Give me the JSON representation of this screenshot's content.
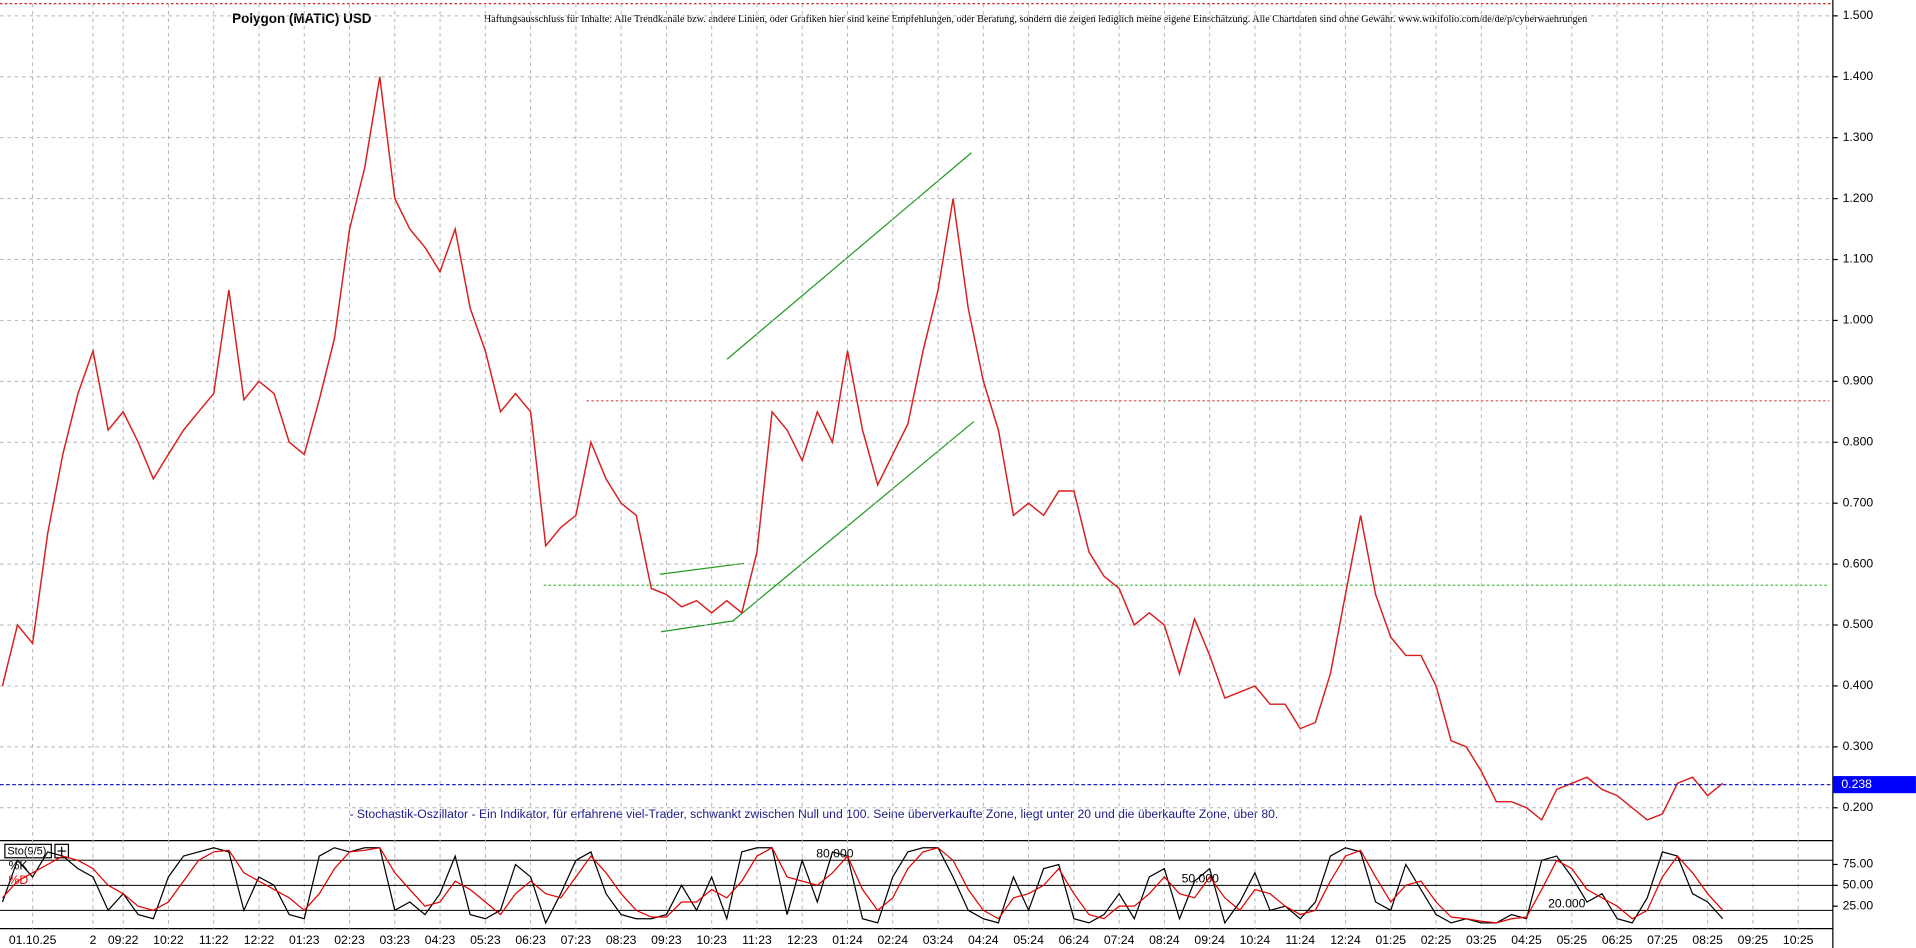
{
  "chart_data": [
    {
      "type": "line",
      "title": "Polygon (MATIC) USD",
      "subtitle": "Haftungsausschluss für Inhalte: Alle Trendkanäle bzw. andere Linien, oder Grafiken hier sind keine Empfehlungen, oder Beratung, sondern die zeigen lediglich meine eigene Einschätzung. Alle Chartdaten sind ohne Gewähr.  www.wikifolio.com/de/de/p/cyberwaehrungen",
      "annotation": "- Stochastik-Oszillator - Ein Indikator, für erfahrene viel-Trader, schwankt zwischen Null und 100. Seine überverkaufte Zone, liegt unter 20 und die überkaufte Zone, über 80.",
      "categories": [
        null,
        null,
        "01.10.25",
        null,
        null,
        null,
        "2",
        null,
        "09:22",
        null,
        null,
        "10:22",
        null,
        null,
        "11:22",
        null,
        null,
        "12:22",
        null,
        null,
        "01:23",
        null,
        null,
        "02:23",
        null,
        null,
        "03:23",
        null,
        null,
        "04:23",
        null,
        null,
        "05:23",
        null,
        null,
        "06:23",
        null,
        null,
        "07:23",
        null,
        null,
        "08:23",
        null,
        null,
        "09:23",
        null,
        null,
        "10:23",
        null,
        null,
        "11:23",
        null,
        null,
        "12:23",
        null,
        null,
        "01:24",
        null,
        null,
        "02:24",
        null,
        null,
        "03:24",
        null,
        null,
        "04:24",
        null,
        null,
        "05:24",
        null,
        null,
        "06:24",
        null,
        null,
        "07:24",
        null,
        null,
        "08:24",
        null,
        null,
        "09:24",
        null,
        null,
        "10:24",
        null,
        null,
        "11:24",
        null,
        null,
        "12:24",
        null,
        null,
        "01:25",
        null,
        null,
        "02:25",
        null,
        null,
        "03:25",
        null,
        null,
        "04:25",
        null,
        null,
        "05:25",
        null,
        null,
        "06:25",
        null,
        null,
        "07:25",
        null,
        null,
        "08:25",
        null,
        null,
        "09:25",
        null,
        null,
        "10:25"
      ],
      "values": [
        0.4,
        0.5,
        0.47,
        0.65,
        0.78,
        0.88,
        0.95,
        0.82,
        0.85,
        0.8,
        0.74,
        0.78,
        0.82,
        0.85,
        0.88,
        1.05,
        0.87,
        0.9,
        0.88,
        0.8,
        0.78,
        0.87,
        0.97,
        1.15,
        1.25,
        1.4,
        1.2,
        1.15,
        1.12,
        1.08,
        1.15,
        1.02,
        0.95,
        0.85,
        0.88,
        0.85,
        0.63,
        0.66,
        0.68,
        0.8,
        0.74,
        0.7,
        0.68,
        0.56,
        0.55,
        0.53,
        0.54,
        0.52,
        0.54,
        0.52,
        0.62,
        0.85,
        0.82,
        0.77,
        0.85,
        0.8,
        0.95,
        0.82,
        0.73,
        0.78,
        0.83,
        0.95,
        1.05,
        1.2,
        1.02,
        0.9,
        0.82,
        0.68,
        0.7,
        0.68,
        0.72,
        0.72,
        0.62,
        0.58,
        0.56,
        0.5,
        0.52,
        0.5,
        0.42,
        0.51,
        0.45,
        0.38,
        0.39,
        0.4,
        0.37,
        0.37,
        0.33,
        0.34,
        0.42,
        0.55,
        0.68,
        0.55,
        0.48,
        0.45,
        0.45,
        0.4,
        0.31,
        0.3,
        0.26,
        0.21,
        0.21,
        0.2,
        0.18,
        0.23,
        0.24,
        0.25,
        0.23,
        0.22,
        0.2,
        0.18,
        0.19,
        0.24,
        0.25,
        0.22,
        0.24,
        null,
        null,
        null,
        null,
        null
      ],
      "color": "#d81e1e",
      "ylim": [
        0.15,
        1.52
      ],
      "yticks": [
        {
          "value": 0.2,
          "label": "0.200"
        },
        {
          "value": 0.3,
          "label": "0.300"
        },
        {
          "value": 0.4,
          "label": "0.400"
        },
        {
          "value": 0.5,
          "label": "0.500"
        },
        {
          "value": 0.6,
          "label": "0.600"
        },
        {
          "value": 0.7,
          "label": "0.700"
        },
        {
          "value": 0.8,
          "label": "0.800"
        },
        {
          "value": 0.9,
          "label": "0.900"
        },
        {
          "value": 1.0,
          "label": "1.000"
        },
        {
          "value": 1.1,
          "label": "1.100"
        },
        {
          "value": 1.2,
          "label": "1.200"
        },
        {
          "value": 1.3,
          "label": "1.300"
        },
        {
          "value": 1.4,
          "label": "1.400"
        },
        {
          "value": 1.5,
          "label": "1.500"
        }
      ],
      "grid": true,
      "last_price": {
        "value": 0.238,
        "label": "0.238"
      }
    },
    {
      "type": "line",
      "title": "Sto(9/5)",
      "series": [
        {
          "name": "%K",
          "color": "#000000",
          "values": [
            30,
            80,
            60,
            90,
            85,
            70,
            60,
            20,
            40,
            15,
            10,
            60,
            85,
            90,
            95,
            90,
            20,
            60,
            50,
            15,
            10,
            85,
            95,
            90,
            95,
            95,
            20,
            30,
            15,
            40,
            85,
            15,
            10,
            20,
            75,
            60,
            5,
            40,
            80,
            90,
            40,
            15,
            10,
            10,
            15,
            50,
            20,
            60,
            10,
            90,
            95,
            95,
            15,
            80,
            30,
            90,
            85,
            10,
            5,
            60,
            90,
            95,
            95,
            60,
            20,
            10,
            5,
            60,
            20,
            70,
            75,
            10,
            5,
            15,
            40,
            10,
            60,
            70,
            10,
            55,
            70,
            5,
            30,
            65,
            20,
            25,
            10,
            30,
            85,
            95,
            90,
            30,
            20,
            75,
            45,
            15,
            5,
            10,
            5,
            5,
            15,
            10,
            80,
            85,
            60,
            30,
            40,
            10,
            5,
            35,
            90,
            85,
            40,
            30,
            10,
            null,
            null,
            null,
            null,
            null
          ]
        },
        {
          "name": "%D",
          "color": "#e00000",
          "values": [
            35,
            55,
            65,
            75,
            85,
            80,
            70,
            50,
            40,
            25,
            20,
            30,
            55,
            80,
            90,
            92,
            65,
            55,
            45,
            35,
            20,
            40,
            70,
            90,
            92,
            95,
            65,
            45,
            25,
            30,
            55,
            45,
            30,
            15,
            40,
            55,
            40,
            35,
            60,
            85,
            65,
            40,
            20,
            12,
            12,
            30,
            30,
            45,
            35,
            55,
            85,
            95,
            60,
            55,
            50,
            65,
            85,
            45,
            20,
            35,
            70,
            90,
            95,
            80,
            45,
            20,
            10,
            35,
            40,
            50,
            70,
            40,
            15,
            10,
            25,
            25,
            40,
            60,
            40,
            35,
            60,
            35,
            20,
            45,
            40,
            25,
            15,
            20,
            55,
            85,
            92,
            60,
            30,
            50,
            55,
            30,
            12,
            10,
            7,
            5,
            10,
            12,
            45,
            80,
            70,
            45,
            35,
            25,
            10,
            20,
            60,
            85,
            65,
            40,
            20,
            null,
            null,
            null,
            null,
            null
          ]
        }
      ],
      "ylim": [
        0,
        100
      ],
      "yticks": [
        {
          "value": 25,
          "label": "25.00"
        },
        {
          "value": 50,
          "label": "50.00"
        },
        {
          "value": 75,
          "label": "75.00"
        }
      ],
      "levels": [
        {
          "value": 80,
          "label": "80.000"
        },
        {
          "value": 50,
          "label": "50.000"
        },
        {
          "value": 20,
          "label": "20.000"
        }
      ]
    }
  ]
}
